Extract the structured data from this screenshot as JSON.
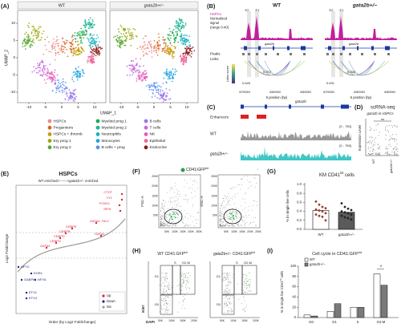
{
  "A": {
    "label": "(A)",
    "wt": "WT",
    "mut": "gata2b+/−",
    "y_label": "UMAP_2",
    "x_label": "UMAP_1",
    "xticks": [
      "-10",
      "-5",
      "0",
      "5",
      "10"
    ],
    "yticks": [
      "10",
      "5",
      "0",
      "-5",
      "-10"
    ],
    "legend": [
      {
        "name": "HSPCs",
        "color": "#ee8a86"
      },
      {
        "name": "Progenitors",
        "color": "#d9651c"
      },
      {
        "name": "HSPCs + thromb",
        "color": "#c79a00"
      },
      {
        "name": "Ery prog 1",
        "color": "#9aa400"
      },
      {
        "name": "Ery prog 2",
        "color": "#53a82b"
      },
      {
        "name": "Myeloid prog 1",
        "color": "#1fab4d"
      },
      {
        "name": "Myeloid prog 2",
        "color": "#1bb38f"
      },
      {
        "name": "Neutrophils",
        "color": "#19b2c2"
      },
      {
        "name": "Monocytes",
        "color": "#1fa2e0"
      },
      {
        "name": "B cells + prog",
        "color": "#5b8ff2"
      },
      {
        "name": "B cells",
        "color": "#9b74ea"
      },
      {
        "name": "T cells",
        "color": "#c766de"
      },
      {
        "name": "NK",
        "color": "#e35bbd"
      },
      {
        "name": "Epithelial",
        "color": "#ef6598"
      },
      {
        "name": "Endocrine",
        "color": "#8b1a1a"
      }
    ]
  },
  "B": {
    "label": "(B)",
    "wt": "WT",
    "mut": "gata2b+/−",
    "signal": [
      "HSPCs",
      "Normalized",
      "signal",
      "(range 0-40)"
    ],
    "e2": "E2",
    "e1": "E1",
    "gene": "gata2b",
    "peaks": "Peaks",
    "links": "Links",
    "score": "Links score",
    "wt_scores": [
      "0.645",
      "0.572"
    ],
    "mut_scores": [
      "0.631",
      "0.626"
    ],
    "xticks": [
      "40790000",
      "40800000",
      "40805000"
    ],
    "x_label": "6 position (bp)"
  },
  "C": {
    "label": "(C)",
    "enhancers": "Enhancers",
    "gene": "gata2b",
    "wt": "WT",
    "mut": "gata2b+/−",
    "range": "[0 - 750]"
  },
  "D": {
    "label": "(D)",
    "title": "scRNA-seq",
    "subtitle": "gata2b in HSPCs",
    "y_label": "Expression Level",
    "ns": "ns",
    "categories": [
      "WT",
      "gata2b+/−"
    ]
  },
  "E": {
    "label": "(E)",
    "title": "HSPCs",
    "subtitle": "WT enriched<------->gata2b+/− enriched",
    "y_label": "Log2 FoldChange",
    "x_label": "Order (by Log2 FoldChange)",
    "up_genes": [
      "CTCF",
      "YY1",
      "FOXK1",
      "IRF8",
      "GATA1::TAL1",
      "GATA1",
      "CEBPE",
      "CEBPB",
      "CEBPD",
      "CEBPG",
      "GATA2"
    ],
    "down_genes": [
      "NFYC",
      "EGR1",
      "GABPA",
      "NFYA",
      "ETV1",
      "ETV4"
    ],
    "legend": [
      {
        "name": "Up",
        "color": "#d7263d"
      },
      {
        "name": "Down",
        "color": "#1d2a7a"
      },
      {
        "name": "NS",
        "color": "#9a9a9a"
      }
    ]
  },
  "F": {
    "label": "(F)",
    "legend": [
      "CD41:GFP",
      "int"
    ],
    "legend_color": "#2e9e45",
    "y_label_1": "FSC-A",
    "y_label_2": "SSC-A",
    "ticks": [
      "50K",
      "100K",
      "150K",
      "200K",
      "250K"
    ]
  },
  "G": {
    "label": "(G)",
    "title": [
      "KM CD41",
      "int",
      " cells"
    ],
    "y_label": "% in single live cells",
    "categories": [
      "WT",
      "gata2b+/−"
    ],
    "colors": [
      "#ffffff",
      "#5a5a5a"
    ],
    "values": [
      0.42,
      0.38
    ],
    "points": [
      [
        0.62,
        0.55,
        0.5,
        0.47,
        0.44,
        0.42,
        0.4,
        0.36,
        0.33,
        0.3,
        0.28,
        0.2
      ],
      [
        0.58,
        0.5,
        0.46,
        0.43,
        0.4,
        0.38,
        0.36,
        0.33,
        0.3,
        0.27,
        0.25,
        0.22
      ]
    ],
    "ylim": [
      0,
      1
    ],
    "yticks": [
      {
        "value": 0,
        "label": "0.0"
      },
      {
        "value": 0.2,
        "label": "0.2"
      },
      {
        "value": 0.4,
        "label": "0.4"
      },
      {
        "value": 0.6,
        "label": "0.6"
      },
      {
        "value": 0.8,
        "label": "0.8"
      },
      {
        "value": 1,
        "label": "1.0"
      }
    ]
  },
  "H": {
    "label": "(H)",
    "wt_title": [
      "WT CD41:GFP",
      "int"
    ],
    "mut_title": [
      "gata2b+/− CD41:GFP",
      "int"
    ],
    "gates": [
      "G1",
      "S",
      "G2-M",
      "G0"
    ],
    "y_label": "Ki67",
    "x_label": "DAPI",
    "xticks": [
      "50K",
      "100K",
      "150K",
      "200K"
    ]
  },
  "I": {
    "label": "(I)",
    "title": [
      "Cell cycle in CD41:GFP",
      "int"
    ],
    "y_label": [
      "% in single live CD41",
      "int",
      " cells"
    ],
    "categories": [
      "G0",
      "G1",
      "S",
      "G2-M"
    ],
    "series": [
      {
        "name": "WT",
        "color": "#ffffff",
        "values": [
          5,
          12,
          20,
          85
        ]
      },
      {
        "name": "gata2b+/−",
        "color": "#7a7a7a",
        "values": [
          3,
          27,
          20,
          63
        ]
      }
    ],
    "ylim": [
      0,
      100
    ],
    "yticks": [
      0,
      20,
      40,
      60,
      80,
      100
    ],
    "significance": "*"
  }
}
